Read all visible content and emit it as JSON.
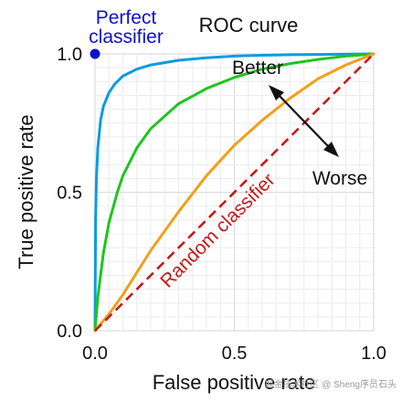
{
  "chart_data": {
    "type": "line",
    "title": "ROC curve",
    "xlabel": "False positive rate",
    "ylabel": "True positive rate",
    "xlim": [
      0,
      1
    ],
    "ylim": [
      0,
      1
    ],
    "grid": true,
    "x_ticks": [
      "0.0",
      "0.5",
      "1.0"
    ],
    "y_ticks": [
      "0.0",
      "0.5",
      "1.0"
    ],
    "series": [
      {
        "color": "#0d9be0",
        "x": [
          0,
          0.002,
          0.005,
          0.01,
          0.02,
          0.03,
          0.05,
          0.07,
          0.1,
          0.15,
          0.2,
          0.3,
          0.4,
          0.5,
          0.6,
          0.7,
          0.8,
          0.9,
          1.0
        ],
        "y": [
          0,
          0.4,
          0.55,
          0.66,
          0.76,
          0.81,
          0.86,
          0.89,
          0.92,
          0.945,
          0.96,
          0.977,
          0.986,
          0.992,
          0.995,
          0.997,
          0.998,
          0.999,
          1.0
        ]
      },
      {
        "color": "#1ec51e",
        "x": [
          0,
          0.01,
          0.03,
          0.05,
          0.08,
          0.1,
          0.15,
          0.2,
          0.3,
          0.4,
          0.5,
          0.6,
          0.7,
          0.8,
          0.9,
          1.0
        ],
        "y": [
          0,
          0.12,
          0.28,
          0.39,
          0.5,
          0.56,
          0.66,
          0.73,
          0.82,
          0.875,
          0.915,
          0.945,
          0.965,
          0.98,
          0.992,
          1.0
        ]
      },
      {
        "color": "#f0a01a",
        "x": [
          0,
          0.05,
          0.1,
          0.2,
          0.3,
          0.4,
          0.5,
          0.6,
          0.7,
          0.8,
          0.9,
          1.0
        ],
        "y": [
          0,
          0.06,
          0.13,
          0.29,
          0.43,
          0.56,
          0.67,
          0.76,
          0.84,
          0.91,
          0.96,
          1.0
        ]
      },
      {
        "name": "Random classifier",
        "color": "#c41a1a",
        "dashed": true,
        "x": [
          0,
          1
        ],
        "y": [
          0,
          1
        ]
      }
    ],
    "points": [
      {
        "name": "Perfect classifier",
        "x": 0,
        "y": 1,
        "color": "#1010d0"
      }
    ],
    "annotations": {
      "better": "Better",
      "worse": "Worse",
      "perfect_line1": "Perfect",
      "perfect_line2": "classifier",
      "random": "Random classifier"
    }
  },
  "watermark": "掘金技术社区 @ Sheng序员石头"
}
